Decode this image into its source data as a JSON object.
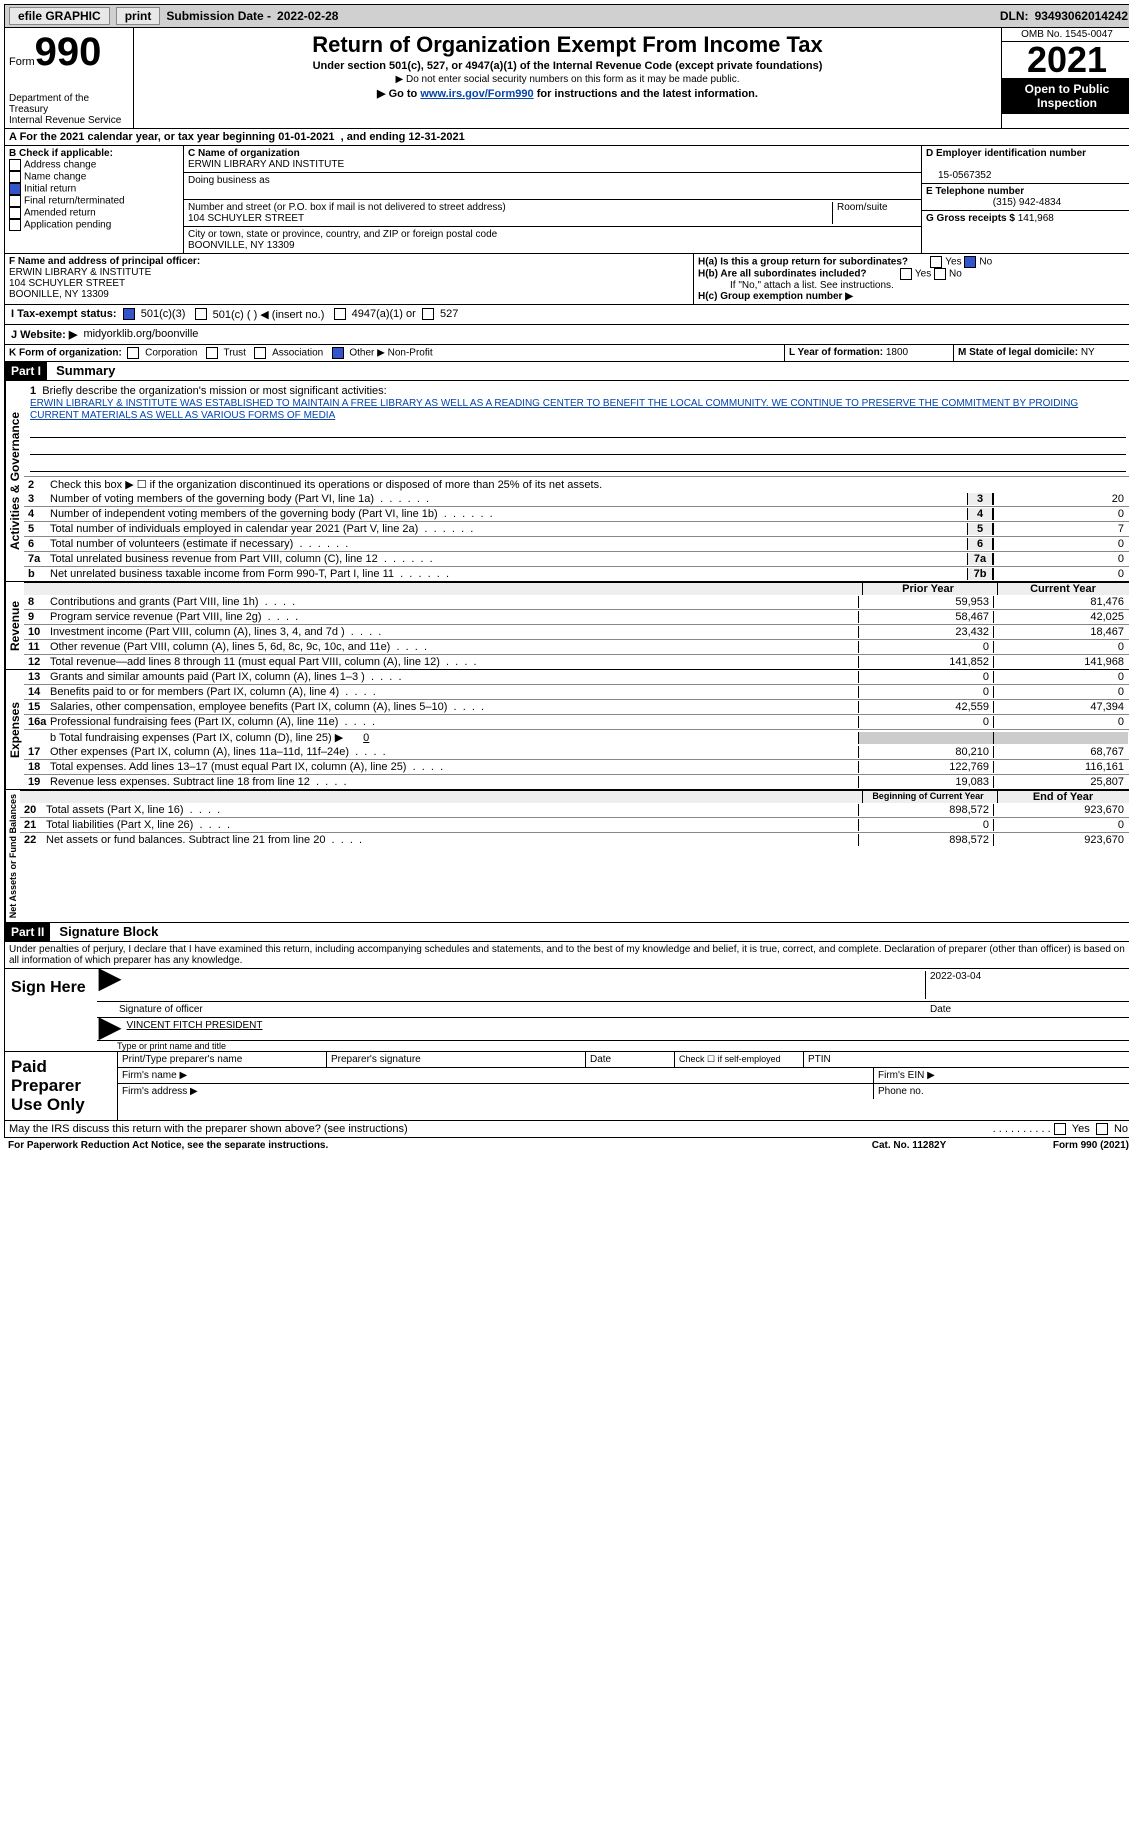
{
  "topbar": {
    "efile": "efile GRAPHIC",
    "print": "print",
    "sub_label": "Submission Date -",
    "sub_date": "2022-02-28",
    "dln_label": "DLN:",
    "dln": "93493062014242"
  },
  "header": {
    "form_word": "Form",
    "form_num": "990",
    "dept": "Department of the Treasury",
    "irs": "Internal Revenue Service",
    "title": "Return of Organization Exempt From Income Tax",
    "sub1": "Under section 501(c), 527, or 4947(a)(1) of the Internal Revenue Code (except private foundations)",
    "sub2": "▶ Do not enter social security numbers on this form as it may be made public.",
    "sub3_pre": "▶ Go to ",
    "sub3_link": "www.irs.gov/Form990",
    "sub3_post": " for instructions and the latest information.",
    "omb": "OMB No. 1545-0047",
    "year": "2021",
    "inspect": "Open to Public Inspection"
  },
  "period": {
    "line_a": "A For the 2021 calendar year, or tax year beginning 01-01-2021",
    "line_a2": ", and ending 12-31-2021"
  },
  "box_b": {
    "label": "B Check if applicable:",
    "address": "Address change",
    "name": "Name change",
    "initial": "Initial return",
    "final": "Final return/terminated",
    "amended": "Amended return",
    "app": "Application pending"
  },
  "box_c": {
    "label_c": "C Name of organization",
    "org": "ERWIN LIBRARY AND INSTITUTE",
    "dba": "Doing business as",
    "addr_lbl": "Number and street (or P.O. box if mail is not delivered to street address)",
    "room": "Room/suite",
    "addr": "104 SCHUYLER STREET",
    "city_lbl": "City or town, state or province, country, and ZIP or foreign postal code",
    "city": "BOONVILLE, NY  13309"
  },
  "box_d": {
    "label": "D Employer identification number",
    "val": "15-0567352"
  },
  "box_e": {
    "label": "E Telephone number",
    "val": "(315) 942-4834"
  },
  "box_g": {
    "label": "G Gross receipts $",
    "val": "141,968"
  },
  "box_f": {
    "label": "F Name and address of principal officer:",
    "name": "ERWIN LIBRARY & INSTITUTE",
    "addr": "104 SCHUYLER STREET",
    "city": "BOONILLE, NY  13309"
  },
  "box_h": {
    "a": "H(a)  Is this a group return for subordinates?",
    "b": "H(b)  Are all subordinates included?",
    "b_note": "If \"No,\" attach a list. See instructions.",
    "c": "H(c)  Group exemption number ▶",
    "yes": "Yes",
    "no": "No"
  },
  "box_i": {
    "label": "I  Tax-exempt status:",
    "c3": "501(c)(3)",
    "c": "501(c) (  ) ◀ (insert no.)",
    "a1": "4947(a)(1) or",
    "s527": "527"
  },
  "box_j": {
    "label": "J  Website: ▶",
    "val": "midyorklib.org/boonville"
  },
  "box_k": {
    "label": "K Form of organization:",
    "corp": "Corporation",
    "trust": "Trust",
    "assoc": "Association",
    "other": "Other ▶",
    "other_val": "Non-Profit"
  },
  "box_l": {
    "label": "L Year of formation:",
    "val": "1800"
  },
  "box_m": {
    "label": "M State of legal domicile:",
    "val": "NY"
  },
  "part1": {
    "bar": "Part I",
    "title": "Summary"
  },
  "summary": {
    "q1": "Briefly describe the organization's mission or most significant activities:",
    "mission": "ERWIN LIBRARLY & INSTITUTE WAS ESTABLISHED TO MAINTAIN A FREE LIBRARY AS WELL AS A READING CENTER TO BENEFIT THE LOCAL COMMUNITY. WE CONTINUE TO PRESERVE THE COMMITMENT BY PROIDING CURRENT MATERIALS AS WELL AS VARIOUS FORMS OF MEDIA",
    "q2": "Check this box ▶ ☐  if the organization discontinued its operations or disposed of more than 25% of its net assets.",
    "rows_single": [
      {
        "n": "3",
        "t": "Number of voting members of the governing body (Part VI, line 1a)",
        "box": "3",
        "v": "20"
      },
      {
        "n": "4",
        "t": "Number of independent voting members of the governing body (Part VI, line 1b)",
        "box": "4",
        "v": "0"
      },
      {
        "n": "5",
        "t": "Total number of individuals employed in calendar year 2021 (Part V, line 2a)",
        "box": "5",
        "v": "7"
      },
      {
        "n": "6",
        "t": "Total number of volunteers (estimate if necessary)",
        "box": "6",
        "v": "0"
      },
      {
        "n": "7a",
        "t": "Total unrelated business revenue from Part VIII, column (C), line 12",
        "box": "7a",
        "v": "0"
      },
      {
        "n": "b",
        "t": "Net unrelated business taxable income from Form 990-T, Part I, line 11",
        "box": "7b",
        "v": "0"
      }
    ],
    "col_prior": "Prior Year",
    "col_current": "Current Year",
    "rev_rows": [
      {
        "n": "8",
        "t": "Contributions and grants (Part VIII, line 1h)",
        "p": "59,953",
        "c": "81,476"
      },
      {
        "n": "9",
        "t": "Program service revenue (Part VIII, line 2g)",
        "p": "58,467",
        "c": "42,025"
      },
      {
        "n": "10",
        "t": "Investment income (Part VIII, column (A), lines 3, 4, and 7d )",
        "p": "23,432",
        "c": "18,467"
      },
      {
        "n": "11",
        "t": "Other revenue (Part VIII, column (A), lines 5, 6d, 8c, 9c, 10c, and 11e)",
        "p": "0",
        "c": "0"
      },
      {
        "n": "12",
        "t": "Total revenue—add lines 8 through 11 (must equal Part VIII, column (A), line 12)",
        "p": "141,852",
        "c": "141,968"
      }
    ],
    "exp_rows": [
      {
        "n": "13",
        "t": "Grants and similar amounts paid (Part IX, column (A), lines 1–3 )",
        "p": "0",
        "c": "0"
      },
      {
        "n": "14",
        "t": "Benefits paid to or for members (Part IX, column (A), line 4)",
        "p": "0",
        "c": "0"
      },
      {
        "n": "15",
        "t": "Salaries, other compensation, employee benefits (Part IX, column (A), lines 5–10)",
        "p": "42,559",
        "c": "47,394"
      },
      {
        "n": "16a",
        "t": "Professional fundraising fees (Part IX, column (A), line 11e)",
        "p": "0",
        "c": "0"
      }
    ],
    "line_b": "b  Total fundraising expenses (Part IX, column (D), line 25) ▶",
    "line_b_val": "0",
    "exp_rows2": [
      {
        "n": "17",
        "t": "Other expenses (Part IX, column (A), lines 11a–11d, 11f–24e)",
        "p": "80,210",
        "c": "68,767"
      },
      {
        "n": "18",
        "t": "Total expenses. Add lines 13–17 (must equal Part IX, column (A), line 25)",
        "p": "122,769",
        "c": "116,161"
      },
      {
        "n": "19",
        "t": "Revenue less expenses. Subtract line 18 from line 12",
        "p": "19,083",
        "c": "25,807"
      }
    ],
    "col_boy": "Beginning of Current Year",
    "col_eoy": "End of Year",
    "net_rows": [
      {
        "n": "20",
        "t": "Total assets (Part X, line 16)",
        "p": "898,572",
        "c": "923,670"
      },
      {
        "n": "21",
        "t": "Total liabilities (Part X, line 26)",
        "p": "0",
        "c": "0"
      },
      {
        "n": "22",
        "t": "Net assets or fund balances. Subtract line 21 from line 20",
        "p": "898,572",
        "c": "923,670"
      }
    ],
    "vlab_act": "Activities & Governance",
    "vlab_rev": "Revenue",
    "vlab_exp": "Expenses",
    "vlab_net": "Net Assets or Fund Balances"
  },
  "part2": {
    "bar": "Part II",
    "title": "Signature Block"
  },
  "sig": {
    "decl": "Under penalties of perjury, I declare that I have examined this return, including accompanying schedules and statements, and to the best of my knowledge and belief, it is true, correct, and complete. Declaration of preparer (other than officer) is based on all information of which preparer has any knowledge.",
    "sign_here": "Sign Here",
    "sig_officer": "Signature of officer",
    "date": "Date",
    "date_val": "2022-03-04",
    "name_title": "VINCENT FITCH  PRESIDENT",
    "type_name": "Type or print name and title",
    "paid": "Paid Preparer Use Only",
    "prep_name": "Print/Type preparer's name",
    "prep_sig": "Preparer's signature",
    "prep_date": "Date",
    "check_self": "Check ☐ if self-employed",
    "ptin": "PTIN",
    "firm_name": "Firm's name  ▶",
    "firm_ein": "Firm's EIN ▶",
    "firm_addr": "Firm's address ▶",
    "phone": "Phone no."
  },
  "footer": {
    "discuss": "May the IRS discuss this return with the preparer shown above? (see instructions)",
    "yes": "Yes",
    "no": "No",
    "pra": "For Paperwork Reduction Act Notice, see the separate instructions.",
    "cat": "Cat. No. 11282Y",
    "form": "Form 990 (2021)"
  }
}
